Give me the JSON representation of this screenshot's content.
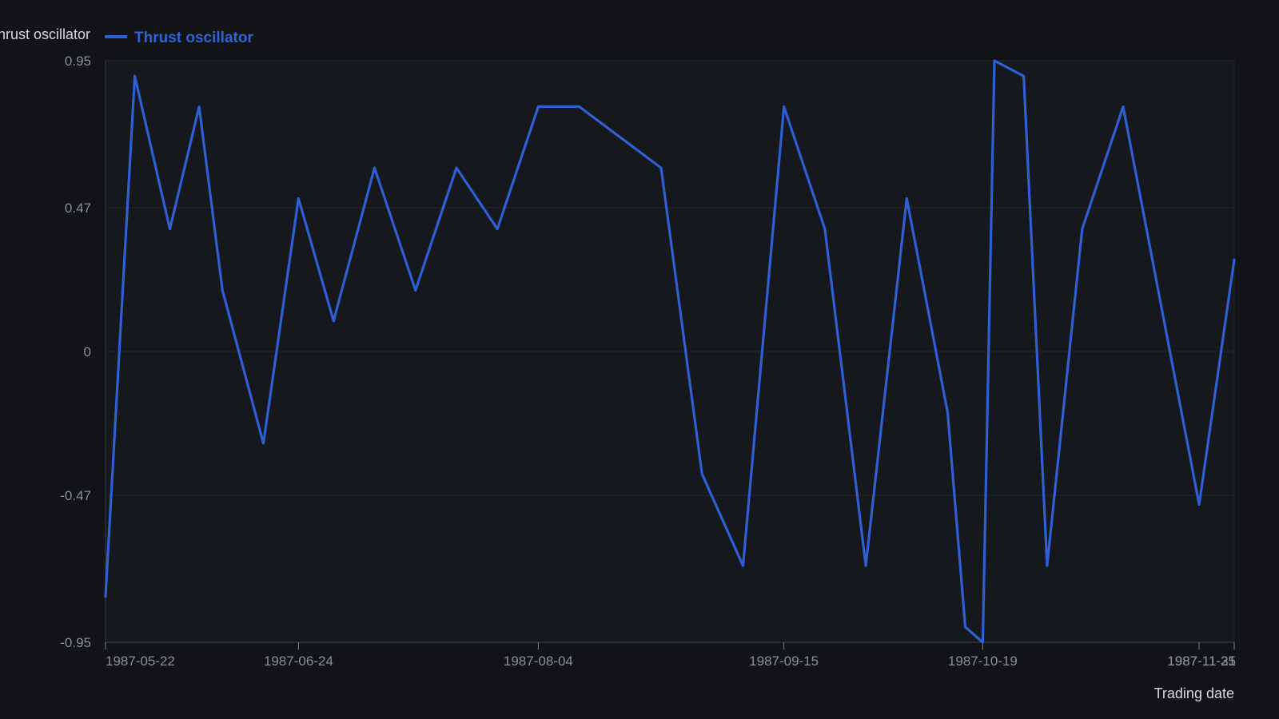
{
  "chart_data": {
    "type": "line",
    "ylabel": "Thrust oscillator",
    "xlabel": "Trading date",
    "colors": {
      "background": "#111317",
      "plot_background": "#15181c",
      "line": "#2f5fd3",
      "grid": "#23272d",
      "axis": "#3a3e45"
    },
    "y_ticks": [
      "-0.95",
      "-0.47",
      "0",
      "0.47",
      "0.95"
    ],
    "ylim": [
      -0.95,
      0.95
    ],
    "x_ticks": [
      {
        "date": "1987-05-22",
        "label": "1987-05-22"
      },
      {
        "date": "1987-06-24",
        "label": "1987-06-24"
      },
      {
        "date": "1987-08-04",
        "label": "1987-08-04"
      },
      {
        "date": "1987-09-15",
        "label": "1987-09-15"
      },
      {
        "date": "1987-10-19",
        "label": "1987-10-19"
      },
      {
        "date": "1987-11-25",
        "label": "1987-11-25"
      },
      {
        "date": "1987-11-31",
        "label": "1987-11-31"
      }
    ],
    "xlim": [
      "1987-05-22",
      "1987-11-31"
    ],
    "series": [
      {
        "name": "Thrust oscillator",
        "points": [
          {
            "x": "1987-05-22",
            "y": -0.8
          },
          {
            "x": "1987-05-27",
            "y": 0.9
          },
          {
            "x": "1987-06-02",
            "y": 0.4
          },
          {
            "x": "1987-06-07",
            "y": 0.8
          },
          {
            "x": "1987-06-11",
            "y": 0.2
          },
          {
            "x": "1987-06-18",
            "y": -0.3
          },
          {
            "x": "1987-06-24",
            "y": 0.5
          },
          {
            "x": "1987-06-30",
            "y": 0.1
          },
          {
            "x": "1987-07-07",
            "y": 0.6
          },
          {
            "x": "1987-07-14",
            "y": 0.2
          },
          {
            "x": "1987-07-21",
            "y": 0.6
          },
          {
            "x": "1987-07-28",
            "y": 0.4
          },
          {
            "x": "1987-08-04",
            "y": 0.8
          },
          {
            "x": "1987-08-11",
            "y": 0.8
          },
          {
            "x": "1987-08-25",
            "y": 0.6
          },
          {
            "x": "1987-09-01",
            "y": -0.4
          },
          {
            "x": "1987-09-08",
            "y": -0.7
          },
          {
            "x": "1987-09-15",
            "y": 0.8
          },
          {
            "x": "1987-09-22",
            "y": 0.4
          },
          {
            "x": "1987-09-29",
            "y": -0.7
          },
          {
            "x": "1987-10-06",
            "y": 0.5
          },
          {
            "x": "1987-10-13",
            "y": -0.2
          },
          {
            "x": "1987-10-16",
            "y": -0.9
          },
          {
            "x": "1987-10-19",
            "y": -0.95
          },
          {
            "x": "1987-10-21",
            "y": 0.95
          },
          {
            "x": "1987-10-26",
            "y": 0.9
          },
          {
            "x": "1987-10-30",
            "y": -0.7
          },
          {
            "x": "1987-11-05",
            "y": 0.4
          },
          {
            "x": "1987-11-12",
            "y": 0.8
          },
          {
            "x": "1987-11-25",
            "y": -0.5
          },
          {
            "x": "1987-11-31",
            "y": 0.3
          }
        ]
      }
    ],
    "legend": {
      "position": "top-left",
      "entries": [
        "Thrust oscillator"
      ]
    },
    "grid": true
  }
}
